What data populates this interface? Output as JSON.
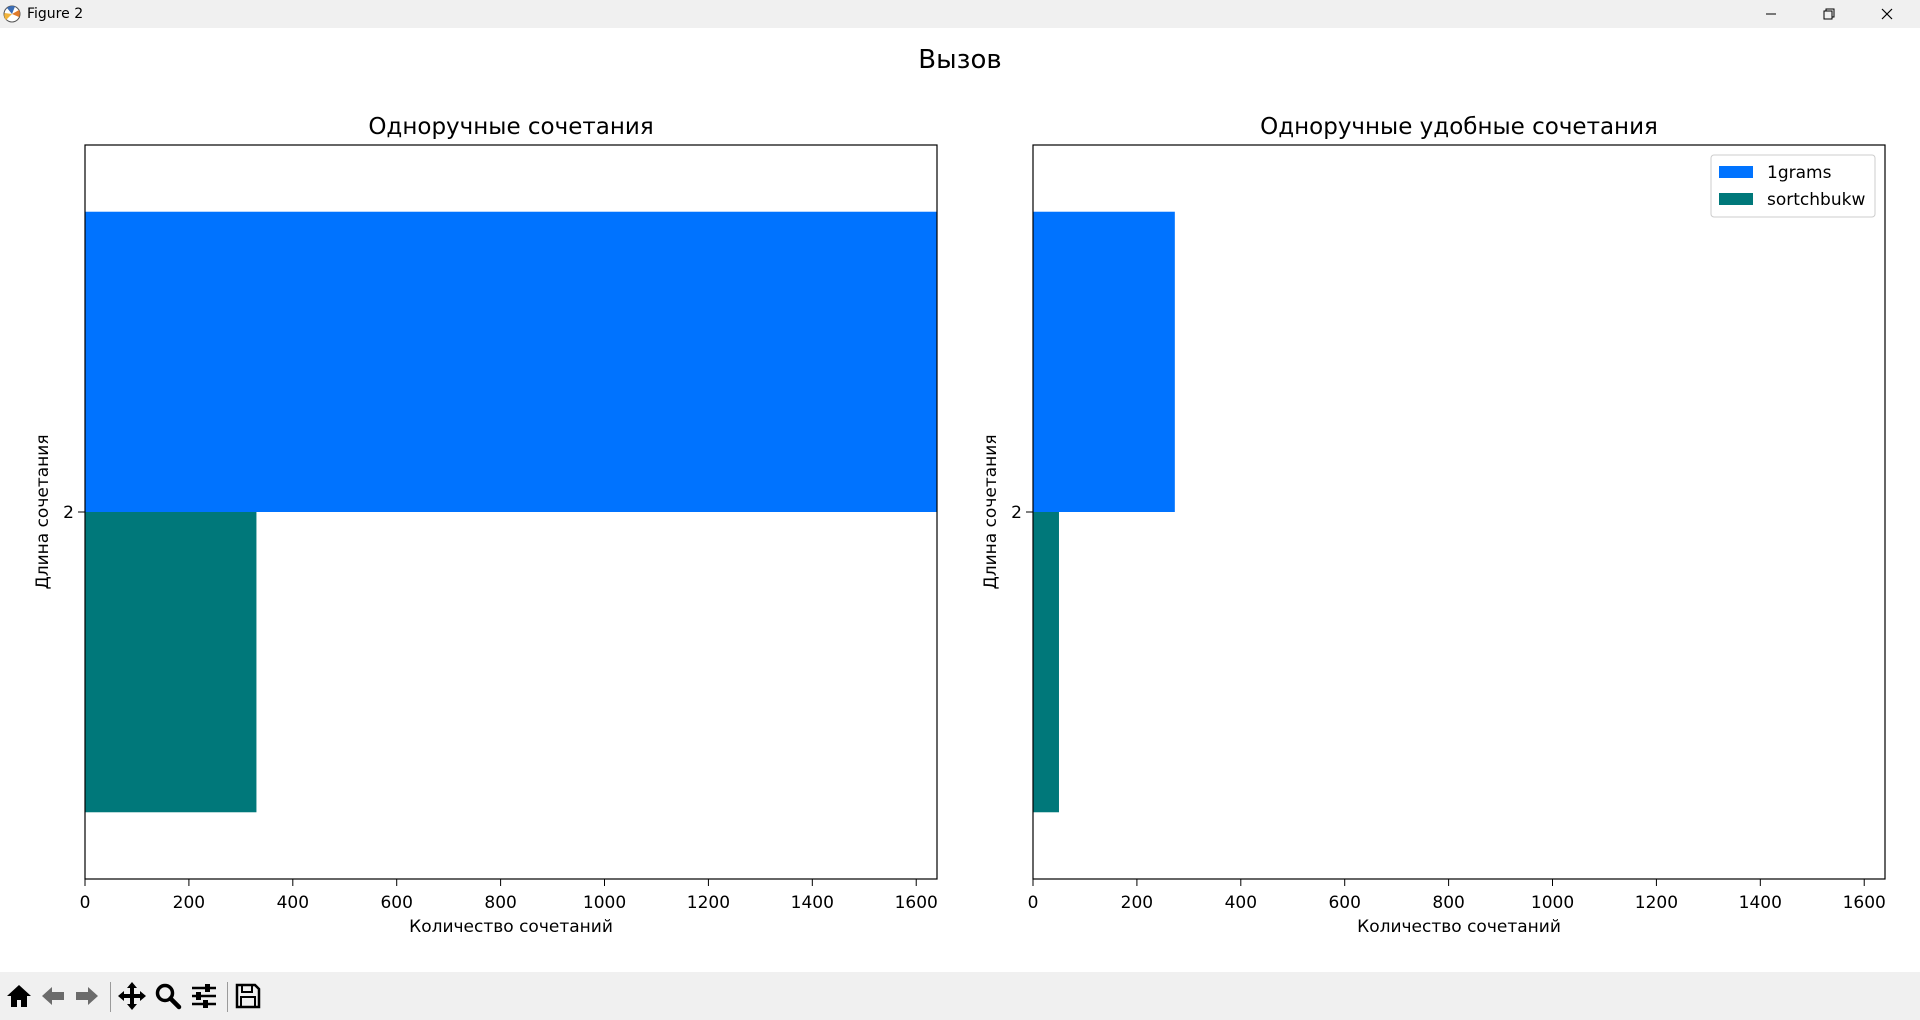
{
  "window": {
    "title": "Figure 2",
    "icons": [
      "matplotlib-logo-icon",
      "minimize-icon",
      "restore-icon",
      "close-icon"
    ]
  },
  "figure": {
    "suptitle": "Вызов"
  },
  "chart_data": [
    {
      "type": "bar",
      "orientation": "horizontal",
      "title": "Одноручные сочетания",
      "xlabel": "Количество сочетаний",
      "ylabel": "Длина сочетания",
      "categories": [
        "2"
      ],
      "series": [
        {
          "name": "1grams",
          "values": [
            1640
          ],
          "color": "#0073ff"
        },
        {
          "name": "sortchbukw",
          "values": [
            330
          ],
          "color": "#00787a"
        }
      ],
      "xlim": [
        0,
        1640
      ],
      "xticks": [
        0,
        200,
        400,
        600,
        800,
        1000,
        1200,
        1400,
        1600
      ],
      "legend": false,
      "grid": false
    },
    {
      "type": "bar",
      "orientation": "horizontal",
      "title": "Одноручные удобные сочетания",
      "xlabel": "Количество сочетаний",
      "ylabel": "Длина сочетания",
      "categories": [
        "2"
      ],
      "series": [
        {
          "name": "1grams",
          "values": [
            273
          ],
          "color": "#0073ff"
        },
        {
          "name": "sortchbukw",
          "values": [
            50
          ],
          "color": "#00787a"
        }
      ],
      "xlim": [
        0,
        1640
      ],
      "xticks": [
        0,
        200,
        400,
        600,
        800,
        1000,
        1200,
        1400,
        1600
      ],
      "legend": "top-right",
      "grid": false
    }
  ],
  "toolbar": {
    "icons": [
      "home-icon",
      "back-arrow-icon",
      "forward-arrow-icon",
      "pan-icon",
      "zoom-icon",
      "configure-subplots-icon",
      "save-icon"
    ]
  }
}
